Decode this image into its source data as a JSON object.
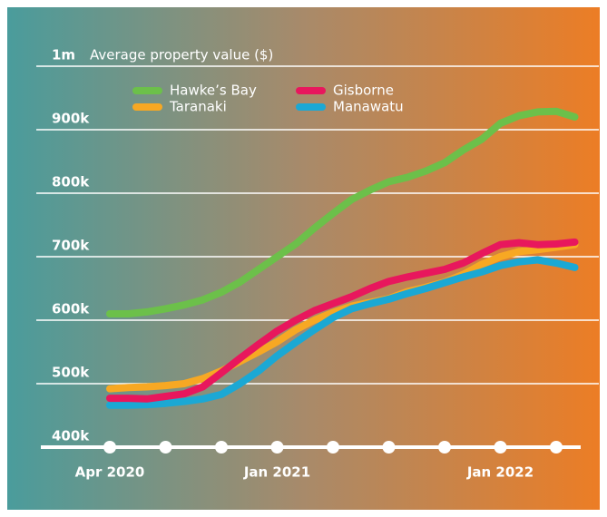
{
  "chart_data": {
    "type": "line",
    "y_axis_label": "Average property value ($)",
    "categories": [
      "Apr 2020",
      null,
      null,
      null,
      null,
      null,
      null,
      null,
      null,
      "Jan 2021",
      null,
      null,
      null,
      null,
      null,
      null,
      null,
      null,
      null,
      null,
      null,
      "Jan 2022",
      null,
      null,
      null,
      null
    ],
    "series": [
      {
        "name": "Taranaki",
        "color": "#f7a823",
        "values": [
          492000,
          494000,
          495000,
          497000,
          500000,
          508000,
          520000,
          535000,
          550000,
          566000,
          585000,
          600000,
          612000,
          622000,
          628000,
          634000,
          645000,
          652000,
          660000,
          672000,
          688000,
          700000,
          708000,
          711000,
          715000,
          719000
        ]
      },
      {
        "name": "Manawatu",
        "color": "#1ba8d4",
        "values": [
          466000,
          466000,
          467000,
          469000,
          472000,
          476000,
          483000,
          500000,
          520000,
          544000,
          565000,
          585000,
          604000,
          618000,
          626000,
          633000,
          642000,
          650000,
          659000,
          668000,
          676000,
          686000,
          692000,
          695000,
          690000,
          683000
        ]
      },
      {
        "name": "Gisborne",
        "color": "#e8175d",
        "values": [
          477000,
          477000,
          476000,
          480000,
          484000,
          495000,
          517000,
          540000,
          562000,
          583000,
          600000,
          615000,
          626000,
          637000,
          650000,
          661000,
          668000,
          674000,
          680000,
          690000,
          705000,
          719000,
          722000,
          719000,
          720000,
          723000
        ]
      },
      {
        "name": "Hawke’s Bay",
        "color": "#6cc04a",
        "values": [
          610000,
          610000,
          613000,
          618000,
          624000,
          632000,
          644000,
          660000,
          680000,
          700000,
          720000,
          745000,
          768000,
          790000,
          805000,
          818000,
          825000,
          835000,
          848000,
          868000,
          885000,
          910000,
          922000,
          928000,
          929000,
          920000
        ]
      }
    ],
    "ylim": [
      400000,
      1000000
    ],
    "yticks": [
      {
        "value": 400000,
        "label": "400k"
      },
      {
        "value": 500000,
        "label": "500k"
      },
      {
        "value": 600000,
        "label": "600k"
      },
      {
        "value": 700000,
        "label": "700k"
      },
      {
        "value": 800000,
        "label": "800k"
      },
      {
        "value": 900000,
        "label": "900k"
      },
      {
        "value": 1000000,
        "label": "1m"
      }
    ],
    "grid": true
  }
}
